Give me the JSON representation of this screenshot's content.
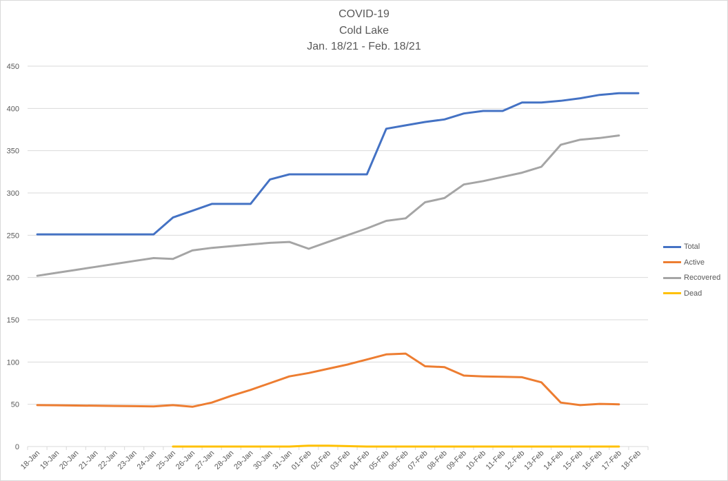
{
  "chart_data": {
    "type": "line",
    "title": "COVID-19",
    "subtitle": "Cold Lake",
    "subtitle2": "Jan. 18/21 - Feb. 18/21",
    "xlabel": "",
    "ylabel": "",
    "ylim": [
      0,
      450
    ],
    "yticks": [
      0,
      50,
      100,
      150,
      200,
      250,
      300,
      350,
      400,
      450
    ],
    "grid": true,
    "legend_position": "right",
    "categories": [
      "18-Jan",
      "19-Jan",
      "20-Jan",
      "21-Jan",
      "22-Jan",
      "23-Jan",
      "24-Jan",
      "25-Jan",
      "26-Jan",
      "27-Jan",
      "28-Jan",
      "29-Jan",
      "30-Jan",
      "31-Jan",
      "01-Feb",
      "02-Feb",
      "03-Feb",
      "04-Feb",
      "05-Feb",
      "06-Feb",
      "07-Feb",
      "08-Feb",
      "09-Feb",
      "10-Feb",
      "11-Feb",
      "12-Feb",
      "13-Feb",
      "14-Feb",
      "15-Feb",
      "16-Feb",
      "17-Feb",
      "18-Feb"
    ],
    "series": [
      {
        "name": "Total",
        "color": "#4472c4",
        "values": [
          251,
          251,
          251,
          251,
          251,
          251,
          251,
          271,
          279,
          287,
          287,
          287,
          316,
          322,
          322,
          322,
          322,
          322,
          376,
          380,
          384,
          387,
          394,
          397,
          397,
          407,
          407,
          409,
          412,
          416,
          418,
          418
        ]
      },
      {
        "name": "Active",
        "color": "#ed7d31",
        "values": [
          49,
          48.8,
          48.5,
          48.3,
          48,
          47.8,
          47.5,
          49,
          47,
          52,
          60,
          67,
          75,
          83,
          87,
          92,
          97,
          103,
          109,
          110,
          95,
          94,
          84,
          83,
          82.5,
          82,
          76,
          52,
          49,
          50.5,
          50,
          null
        ]
      },
      {
        "name": "Recovered",
        "color": "#a5a5a5",
        "values": [
          202,
          205.5,
          209,
          212.5,
          216,
          219.5,
          223,
          222,
          232,
          235,
          237,
          239,
          241,
          242,
          234,
          242,
          250,
          258,
          267,
          270,
          289,
          294,
          310,
          314,
          319,
          324,
          331,
          357,
          363,
          365,
          368,
          null
        ]
      },
      {
        "name": "Dead",
        "color": "#ffc000",
        "values": [
          null,
          null,
          null,
          null,
          null,
          null,
          null,
          0,
          0,
          0,
          0,
          0,
          0,
          0,
          1,
          1,
          0.5,
          0,
          0,
          0,
          0,
          0,
          0,
          0,
          0,
          0,
          0,
          0,
          0,
          0,
          0,
          null
        ]
      }
    ]
  }
}
